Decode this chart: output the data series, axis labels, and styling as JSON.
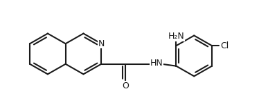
{
  "background_color": "#ffffff",
  "line_color": "#1a1a1a",
  "line_width": 1.5,
  "text_color": "#1a1a1a",
  "figsize": [
    3.74,
    1.55
  ],
  "dpi": 100,
  "xlim": [
    0,
    374
  ],
  "ylim": [
    0,
    155
  ]
}
